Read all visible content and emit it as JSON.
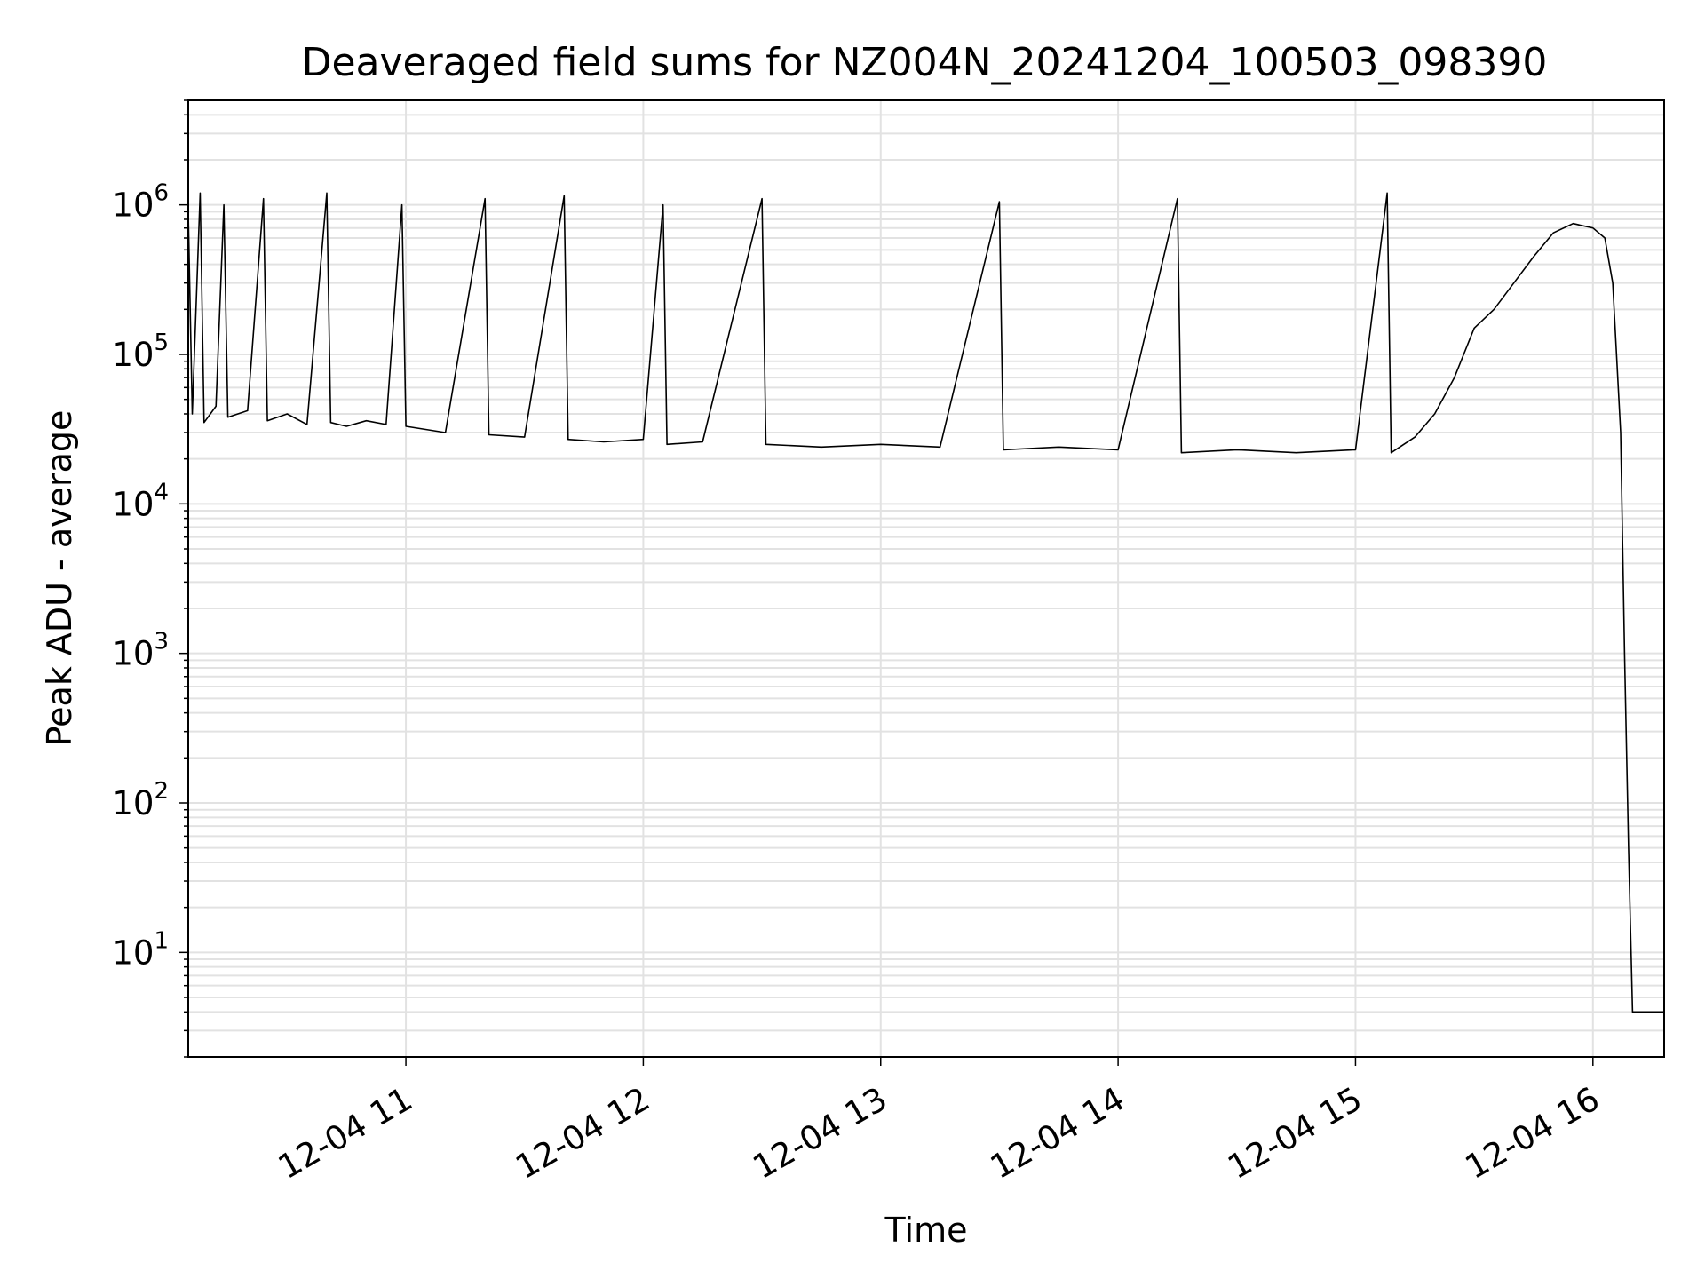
{
  "chart_data": {
    "type": "line",
    "title": "Deaveraged field sums for NZ004N_20241204_100503_098390",
    "xlabel": "Time",
    "ylabel": "Peak ADU - average",
    "yscale": "log",
    "ylim": [
      2,
      5000000
    ],
    "xlim": [
      "2024-12-04 10:05",
      "2024-12-04 16:18"
    ],
    "grid": true,
    "x_ticks": [
      {
        "label": "12-04 11",
        "value": "2024-12-04 11:00"
      },
      {
        "label": "12-04 12",
        "value": "2024-12-04 12:00"
      },
      {
        "label": "12-04 13",
        "value": "2024-12-04 13:00"
      },
      {
        "label": "12-04 14",
        "value": "2024-12-04 14:00"
      },
      {
        "label": "12-04 15",
        "value": "2024-12-04 15:00"
      },
      {
        "label": "12-04 16",
        "value": "2024-12-04 16:00"
      }
    ],
    "y_ticks": [
      {
        "base": "10",
        "exp": "1",
        "value": 10
      },
      {
        "base": "10",
        "exp": "2",
        "value": 100
      },
      {
        "base": "10",
        "exp": "3",
        "value": 1000
      },
      {
        "base": "10",
        "exp": "4",
        "value": 10000
      },
      {
        "base": "10",
        "exp": "5",
        "value": 100000
      },
      {
        "base": "10",
        "exp": "6",
        "value": 1000000
      }
    ],
    "series": [
      {
        "color": "#000000",
        "points": [
          [
            "2024-12-04 10:05",
            900000
          ],
          [
            "2024-12-04 10:06",
            40000
          ],
          [
            "2024-12-04 10:08",
            1200000
          ],
          [
            "2024-12-04 10:09",
            35000
          ],
          [
            "2024-12-04 10:12",
            45000
          ],
          [
            "2024-12-04 10:14",
            1000000
          ],
          [
            "2024-12-04 10:15",
            38000
          ],
          [
            "2024-12-04 10:20",
            42000
          ],
          [
            "2024-12-04 10:24",
            1100000
          ],
          [
            "2024-12-04 10:25",
            36000
          ],
          [
            "2024-12-04 10:30",
            40000
          ],
          [
            "2024-12-04 10:35",
            34000
          ],
          [
            "2024-12-04 10:40",
            1200000
          ],
          [
            "2024-12-04 10:41",
            35000
          ],
          [
            "2024-12-04 10:45",
            33000
          ],
          [
            "2024-12-04 10:50",
            36000
          ],
          [
            "2024-12-04 10:55",
            34000
          ],
          [
            "2024-12-04 10:59",
            1000000
          ],
          [
            "2024-12-04 11:00",
            33000
          ],
          [
            "2024-12-04 11:10",
            30000
          ],
          [
            "2024-12-04 11:20",
            1100000
          ],
          [
            "2024-12-04 11:21",
            29000
          ],
          [
            "2024-12-04 11:30",
            28000
          ],
          [
            "2024-12-04 11:40",
            1150000
          ],
          [
            "2024-12-04 11:41",
            27000
          ],
          [
            "2024-12-04 11:50",
            26000
          ],
          [
            "2024-12-04 12:00",
            27000
          ],
          [
            "2024-12-04 12:05",
            1000000
          ],
          [
            "2024-12-04 12:06",
            25000
          ],
          [
            "2024-12-04 12:15",
            26000
          ],
          [
            "2024-12-04 12:30",
            1100000
          ],
          [
            "2024-12-04 12:31",
            25000
          ],
          [
            "2024-12-04 12:45",
            24000
          ],
          [
            "2024-12-04 13:00",
            25000
          ],
          [
            "2024-12-04 13:15",
            24000
          ],
          [
            "2024-12-04 13:30",
            1050000
          ],
          [
            "2024-12-04 13:31",
            23000
          ],
          [
            "2024-12-04 13:45",
            24000
          ],
          [
            "2024-12-04 14:00",
            23000
          ],
          [
            "2024-12-04 14:15",
            1100000
          ],
          [
            "2024-12-04 14:16",
            22000
          ],
          [
            "2024-12-04 14:30",
            23000
          ],
          [
            "2024-12-04 14:45",
            22000
          ],
          [
            "2024-12-04 15:00",
            23000
          ],
          [
            "2024-12-04 15:08",
            1200000
          ],
          [
            "2024-12-04 15:09",
            22000
          ],
          [
            "2024-12-04 15:15",
            28000
          ],
          [
            "2024-12-04 15:20",
            40000
          ],
          [
            "2024-12-04 15:25",
            70000
          ],
          [
            "2024-12-04 15:30",
            150000
          ],
          [
            "2024-12-04 15:35",
            200000
          ],
          [
            "2024-12-04 15:40",
            300000
          ],
          [
            "2024-12-04 15:45",
            450000
          ],
          [
            "2024-12-04 15:50",
            650000
          ],
          [
            "2024-12-04 15:55",
            750000
          ],
          [
            "2024-12-04 16:00",
            700000
          ],
          [
            "2024-12-04 16:03",
            600000
          ],
          [
            "2024-12-04 16:05",
            300000
          ],
          [
            "2024-12-04 16:07",
            30000
          ],
          [
            "2024-12-04 16:08",
            1000
          ],
          [
            "2024-12-04 16:09",
            50
          ],
          [
            "2024-12-04 16:10",
            4
          ],
          [
            "2024-12-04 16:18",
            4
          ]
        ]
      }
    ]
  }
}
